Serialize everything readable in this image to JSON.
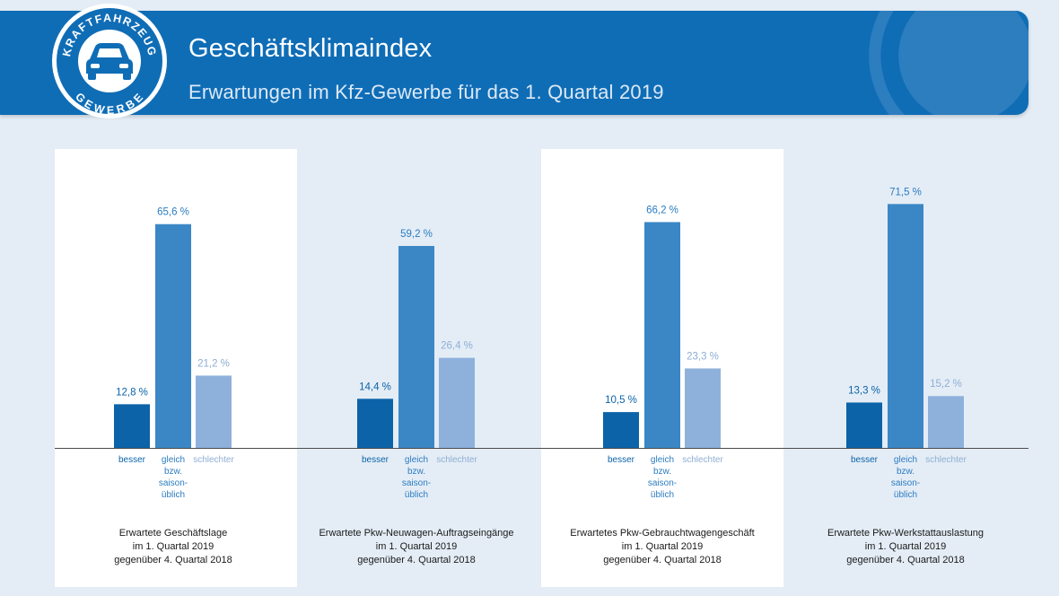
{
  "header": {
    "title": "Geschäftsklimaindex",
    "subtitle": "Erwartungen im Kfz-Gewerbe für das 1. Quartal 2019"
  },
  "logo": {
    "top_text": "KRAFTFAHRZEUG",
    "bottom_text": "GEWERBE",
    "icon": "car-icon"
  },
  "colors": {
    "banner": "#0f6db6",
    "background": "#e4edf6",
    "besser": "#0c63a8",
    "gleich": "#3b87c6",
    "schlechter": "#8eb1dc",
    "label_besser": "#0c63a8",
    "label_gleich": "#2c7cc1",
    "label_schlechter": "#8eaed4"
  },
  "chart_data": {
    "type": "bar",
    "categories": [
      "besser",
      "gleich bzw. saison-üblich",
      "schlechter"
    ],
    "category_label_lines": [
      [
        "besser"
      ],
      [
        "gleich",
        "bzw.",
        "saison-",
        "üblich"
      ],
      [
        "schlechter"
      ]
    ],
    "unit": "%",
    "ylim": [
      0,
      75
    ],
    "grid": false,
    "groups": [
      {
        "caption": [
          "Erwartete Geschäftslage",
          "im 1. Quartal 2019",
          "gegenüber 4. Quartal 2018"
        ],
        "values": [
          12.8,
          65.6,
          21.2
        ],
        "labels": [
          "12,8 %",
          "65,6 %",
          "21,2 %"
        ]
      },
      {
        "caption": [
          "Erwartete Pkw-Neuwagen-Auftragseingänge",
          "im 1. Quartal 2019",
          "gegenüber 4. Quartal 2018"
        ],
        "values": [
          14.4,
          59.2,
          26.4
        ],
        "labels": [
          "14,4 %",
          "59,2 %",
          "26,4 %"
        ]
      },
      {
        "caption": [
          "Erwartetes Pkw-Gebrauchtwagengeschäft",
          "im 1. Quartal 2019",
          "gegenüber 4. Quartal 2018"
        ],
        "values": [
          10.5,
          66.2,
          23.3
        ],
        "labels": [
          "10,5 %",
          "66,2 %",
          "23,3 %"
        ]
      },
      {
        "caption": [
          "Erwartete Pkw-Werkstattauslastung",
          "im 1. Quartal 2019",
          "gegenüber 4. Quartal 2018"
        ],
        "values": [
          13.3,
          71.5,
          15.2
        ],
        "labels": [
          "13,3 %",
          "71,5 %",
          "15,2 %"
        ]
      }
    ]
  }
}
